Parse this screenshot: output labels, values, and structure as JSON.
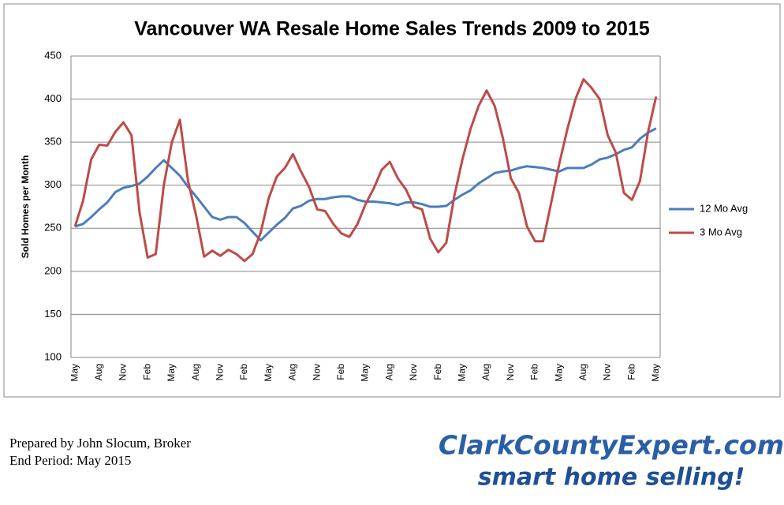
{
  "chart_data": {
    "type": "line",
    "title": "Vancouver WA Resale Home Sales Trends 2009 to 2015",
    "y_label": "Sold Homes per Month",
    "categories": [
      "May",
      null,
      null,
      "Aug",
      null,
      null,
      "Nov",
      null,
      null,
      "Feb",
      null,
      null,
      "May",
      null,
      null,
      "Aug",
      null,
      null,
      "Nov",
      null,
      null,
      "Feb",
      null,
      null,
      "May",
      null,
      null,
      "Aug",
      null,
      null,
      "Nov",
      null,
      null,
      "Feb",
      null,
      null,
      "May",
      null,
      null,
      "Aug",
      null,
      null,
      "Nov",
      null,
      null,
      "Feb",
      null,
      null,
      "May",
      null,
      null,
      "Aug",
      null,
      null,
      "Nov",
      null,
      null,
      "Feb",
      null,
      null,
      "May",
      null,
      null,
      "Aug",
      null,
      null,
      "Nov",
      null,
      null,
      "Feb",
      null,
      null,
      "May"
    ],
    "series": [
      {
        "name": "12 Mo Avg",
        "color": "#4a7ebb",
        "values": [
          252,
          255,
          263,
          272,
          280,
          292,
          297,
          299,
          302,
          310,
          320,
          329,
          320,
          311,
          298,
          287,
          275,
          263,
          260,
          263,
          263,
          256,
          246,
          236,
          245,
          254,
          262,
          273,
          276,
          282,
          284,
          284,
          286,
          287,
          287,
          283,
          281,
          281,
          280,
          279,
          277,
          280,
          280,
          278,
          275,
          275,
          276,
          283,
          289,
          294,
          302,
          308,
          314,
          316,
          317,
          320,
          322,
          321,
          320,
          318,
          316,
          320,
          320,
          320,
          324,
          330,
          332,
          336,
          341,
          344,
          354,
          361,
          366
        ]
      },
      {
        "name": "3 Mo Avg",
        "color": "#be4b48",
        "values": [
          252,
          282,
          330,
          347,
          346,
          362,
          373,
          358,
          268,
          216,
          220,
          300,
          350,
          376,
          305,
          265,
          217,
          224,
          218,
          225,
          220,
          212,
          220,
          245,
          285,
          310,
          320,
          336,
          316,
          298,
          272,
          270,
          255,
          244,
          240,
          255,
          278,
          296,
          318,
          327,
          308,
          295,
          275,
          272,
          238,
          222,
          233,
          288,
          330,
          365,
          392,
          410,
          392,
          355,
          308,
          291,
          252,
          235,
          235,
          280,
          325,
          365,
          400,
          423,
          413,
          400,
          358,
          338,
          291,
          283,
          305,
          362,
          403
        ]
      }
    ],
    "ylim": [
      100,
      450
    ],
    "yticks": [
      100,
      150,
      200,
      250,
      300,
      350,
      400,
      450
    ],
    "grid": true,
    "legend": "right"
  },
  "footer": {
    "lines": [
      "Prepared by John Slocum, Broker",
      "End Period: May 2015"
    ],
    "logo": [
      "ClarkCountyExpert.com",
      "smart home selling!"
    ]
  }
}
